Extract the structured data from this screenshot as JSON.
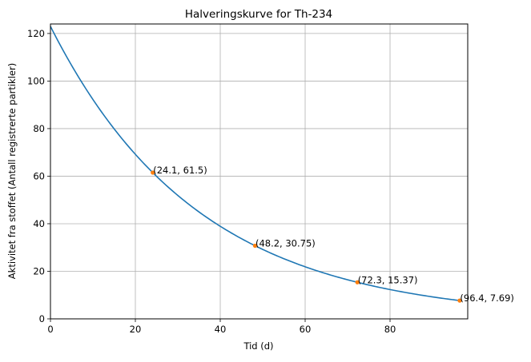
{
  "chart_data": {
    "type": "line",
    "title": "Halveringskurve for Th-234",
    "xlabel": "Tid (d)",
    "ylabel": "Aktivitet fra stoffet (Antall registrerte partikler)",
    "xlim": [
      0,
      98.3
    ],
    "ylim": [
      0,
      124
    ],
    "xticks": [
      0,
      20,
      40,
      60,
      80
    ],
    "yticks": [
      0,
      20,
      40,
      60,
      80,
      100,
      120
    ],
    "grid": true,
    "curve": {
      "initial": 123,
      "half_life": 24.1,
      "x_range": [
        0,
        97
      ]
    },
    "points": [
      {
        "x": 24.1,
        "y": 61.5,
        "label": "(24.1, 61.5)"
      },
      {
        "x": 48.2,
        "y": 30.75,
        "label": "(48.2, 30.75)"
      },
      {
        "x": 72.3,
        "y": 15.37,
        "label": "(72.3, 15.37)"
      },
      {
        "x": 96.4,
        "y": 7.69,
        "label": "(96.4, 7.69)"
      }
    ],
    "colors": {
      "line": "#1f77b4",
      "points": "#ff7f0e",
      "grid": "#b0b0b0"
    }
  }
}
